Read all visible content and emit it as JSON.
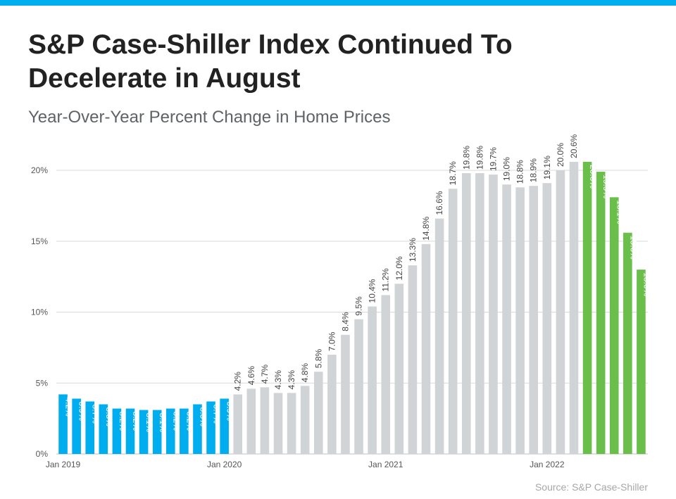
{
  "header": {
    "title": "S&P Case-Shiller Index Continued To Decelerate in August",
    "subtitle": "Year-Over-Year Percent Change in Home Prices"
  },
  "footer": {
    "source": "Source: S&P Case-Shiller"
  },
  "colors": {
    "accent_bar": "#00aeef",
    "series_2019": "#00aeef",
    "series_mid": "#d0d4d7",
    "series_2022": "#6abf4b",
    "gridline": "#d9d9d9",
    "axis_text": "#555555",
    "label_dark": "#444444",
    "label_light": "#ffffff"
  },
  "chart_data": {
    "type": "bar",
    "ylim": [
      0,
      20
    ],
    "y_ticks": [
      "0%",
      "5%",
      "10%",
      "15%",
      "20%"
    ],
    "x_tick_labels": [
      "Jan 2019",
      "Jan 2020",
      "Jan 2021",
      "Jan 2022"
    ],
    "grid": true,
    "months": [
      "2019-01",
      "2019-02",
      "2019-03",
      "2019-04",
      "2019-05",
      "2019-06",
      "2019-07",
      "2019-08",
      "2019-09",
      "2019-10",
      "2019-11",
      "2019-12",
      "2020-01",
      "2020-02",
      "2020-03",
      "2020-04",
      "2020-05",
      "2020-06",
      "2020-07",
      "2020-08",
      "2020-09",
      "2020-10",
      "2020-11",
      "2020-12",
      "2021-01",
      "2021-02",
      "2021-03",
      "2021-04",
      "2021-05",
      "2021-06",
      "2021-07",
      "2021-08",
      "2021-09",
      "2021-10",
      "2021-11",
      "2021-12",
      "2022-01",
      "2022-02",
      "2022-03",
      "2022-04",
      "2022-05",
      "2022-06",
      "2022-07",
      "2022-08"
    ],
    "values": [
      4.2,
      3.9,
      3.7,
      3.5,
      3.2,
      3.2,
      3.1,
      3.1,
      3.2,
      3.2,
      3.5,
      3.7,
      3.9,
      4.2,
      4.6,
      4.7,
      4.3,
      4.3,
      4.8,
      5.8,
      7.0,
      8.4,
      9.5,
      10.4,
      11.2,
      12.0,
      13.3,
      14.8,
      16.6,
      18.7,
      19.8,
      19.8,
      19.7,
      19.0,
      18.8,
      18.9,
      19.1,
      20.0,
      20.6,
      20.6,
      19.9,
      18.1,
      15.6,
      13.0
    ],
    "labels": [
      "4.2%",
      "3.9%",
      "3.7%",
      "3.5%",
      "3.2%",
      "3.2%",
      "3.1%",
      "3.1%",
      "3.2%",
      "3.2%",
      "3.5%",
      "3.7%",
      "3.9%",
      "4.2%",
      "4.6%",
      "4.7%",
      "4.3%",
      "4.3%",
      "4.8%",
      "5.8%",
      "7.0%",
      "8.4%",
      "9.5%",
      "10.4%",
      "11.2%",
      "12.0%",
      "13.3%",
      "14.8%",
      "16.6%",
      "18.7%",
      "19.8%",
      "19.8%",
      "19.7%",
      "19.0%",
      "18.8%",
      "18.9%",
      "19.1%",
      "20.0%",
      "20.6%",
      "20.6%",
      "19.9%",
      "18.1%",
      "15.6%",
      "13.0%"
    ],
    "segments": [
      {
        "from": 0,
        "to": 12,
        "color": "#00aeef",
        "label_inside": true
      },
      {
        "from": 13,
        "to": 38,
        "color": "#d0d4d7",
        "label_inside": false
      },
      {
        "from": 39,
        "to": 43,
        "color": "#6abf4b",
        "label_inside": true
      }
    ]
  }
}
